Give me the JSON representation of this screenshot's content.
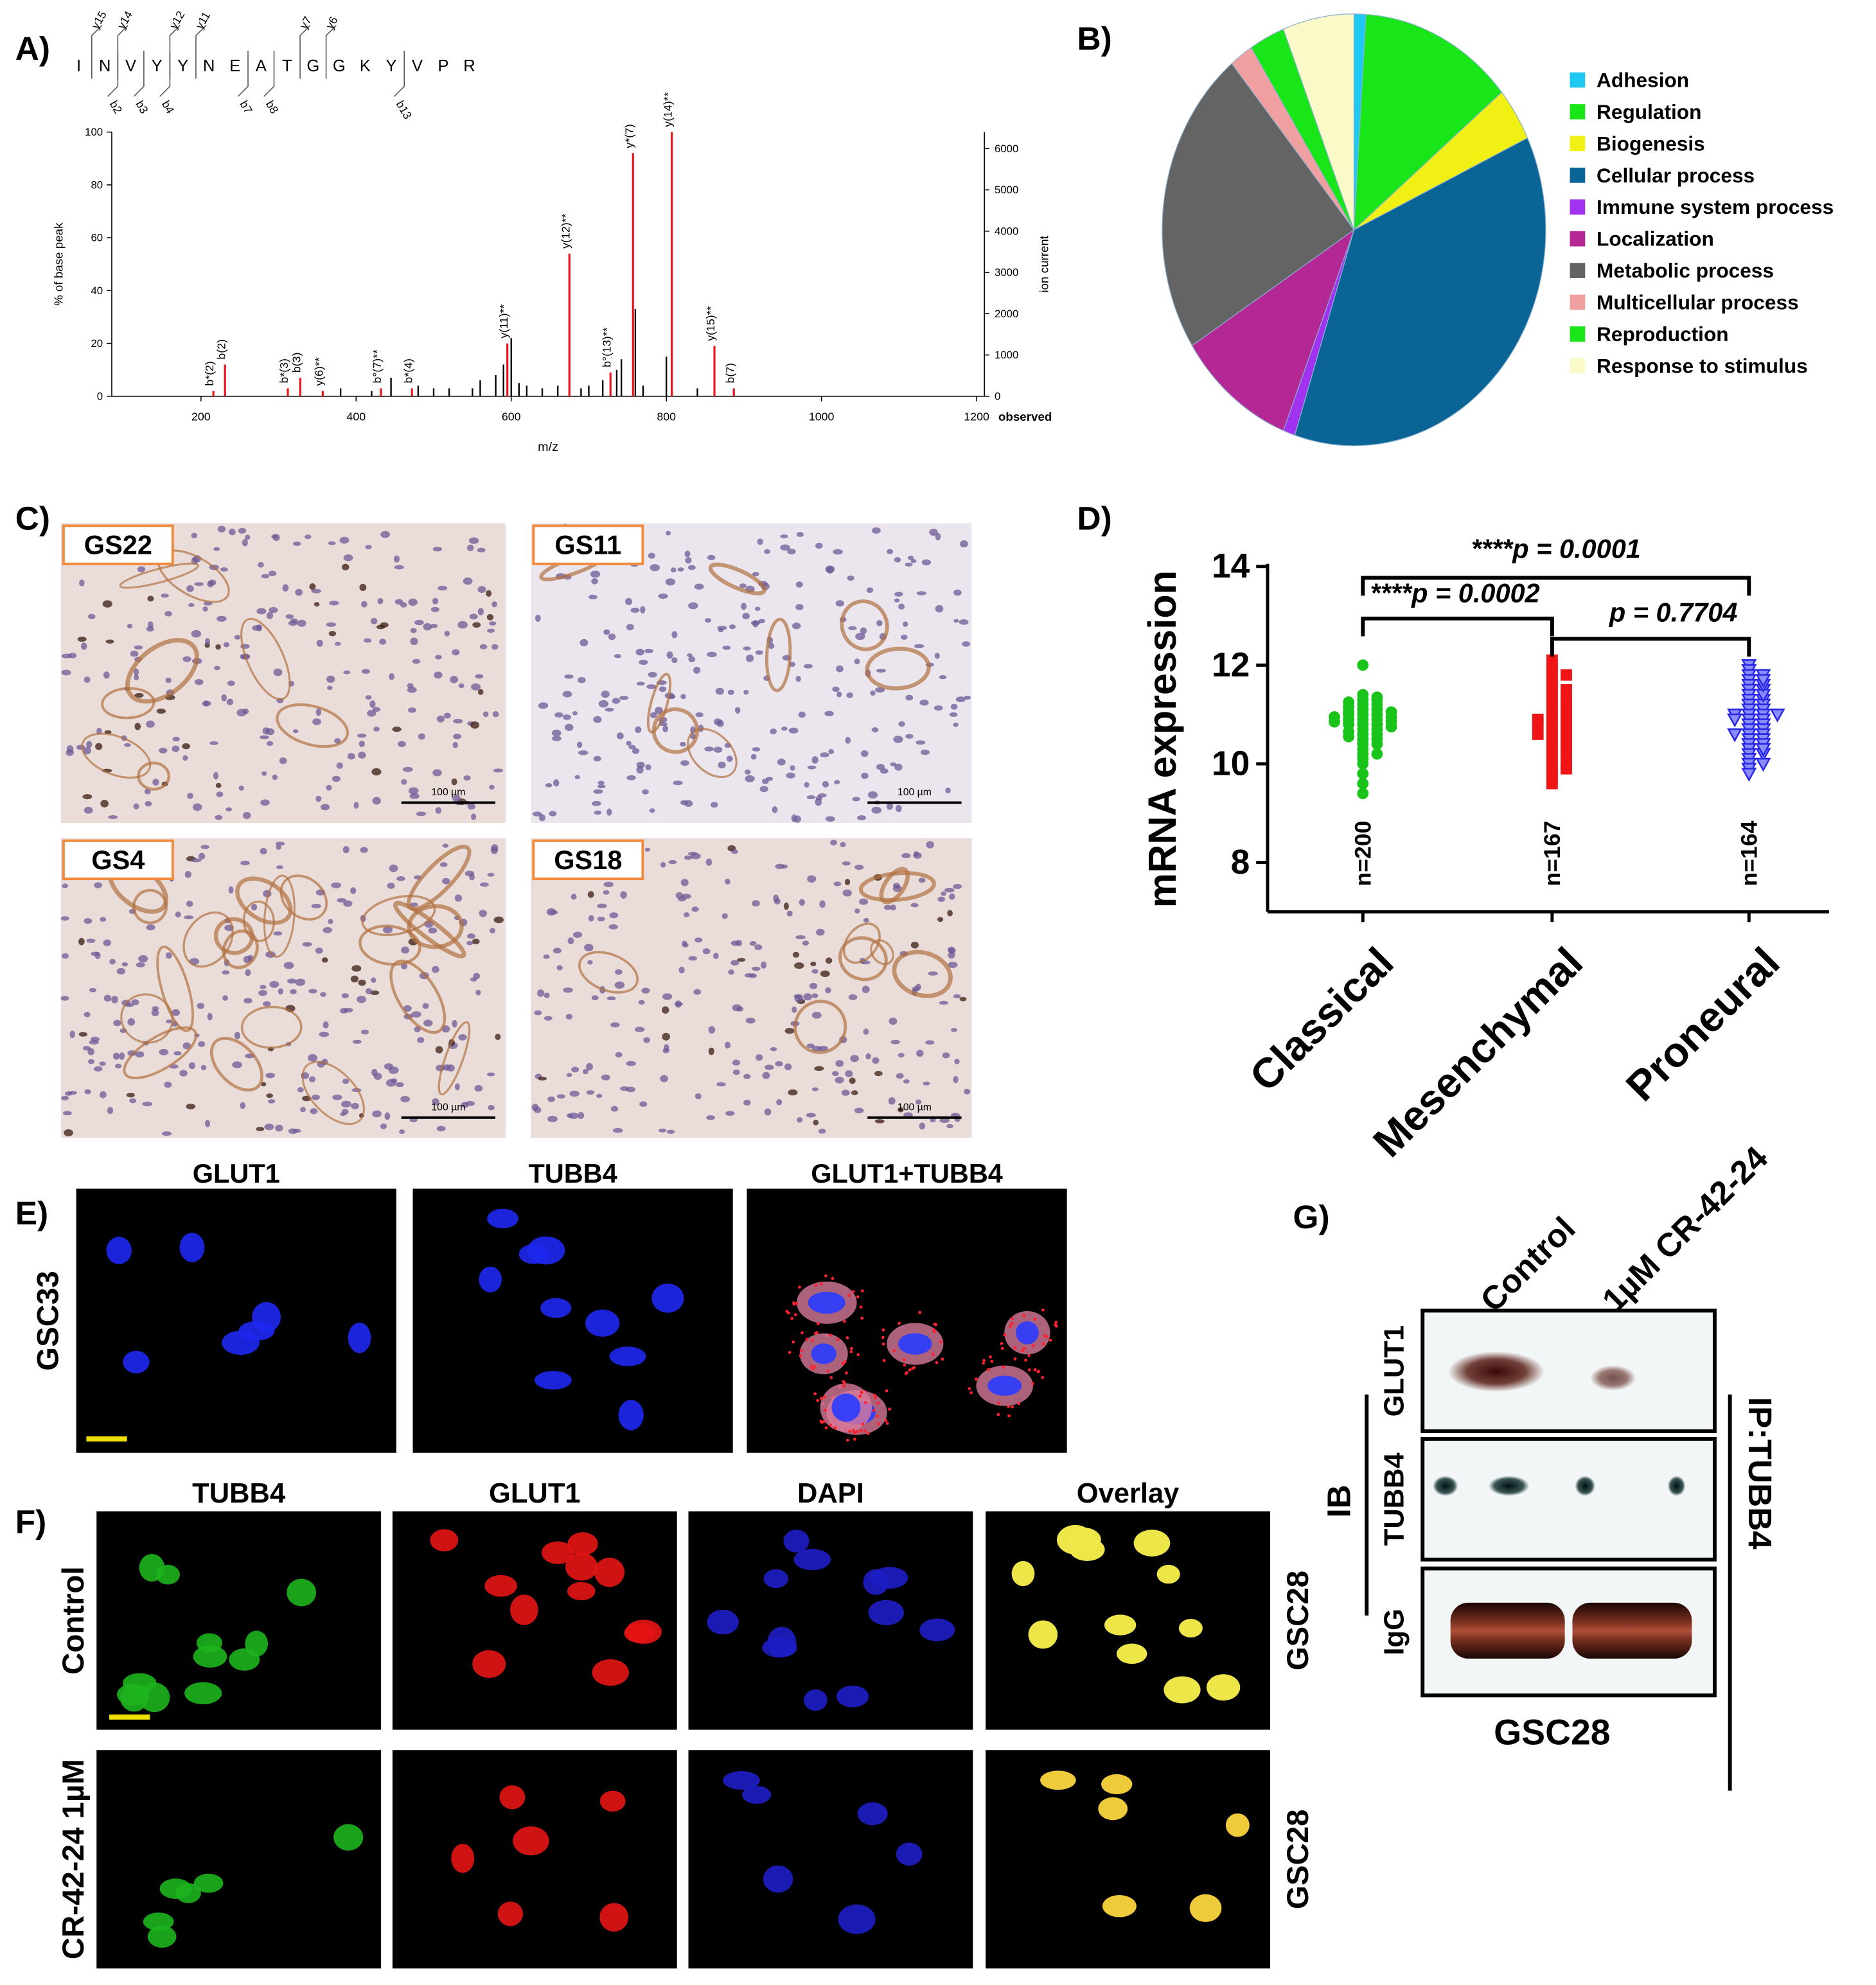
{
  "panels": {
    "A": "A)",
    "B": "B)",
    "C": "C)",
    "D": "D)",
    "E": "E)",
    "F": "F)",
    "G": "G)"
  },
  "sequence": {
    "residues": [
      "I",
      "N",
      "V",
      "Y",
      "Y",
      "N",
      "E",
      "A",
      "T",
      "G",
      "G",
      "K",
      "Y",
      "V",
      "P",
      "R"
    ],
    "y_ions": [
      "y15",
      "y14",
      "y12",
      "y11",
      "y7",
      "y6"
    ],
    "b_ions": [
      "b2",
      "b3",
      "b4",
      "b7",
      "b8",
      "b13"
    ]
  },
  "chart_data": [
    {
      "type": "spectrum",
      "xlabel": "m/z",
      "ylabel": "% of base peak",
      "y2label": "ion current",
      "x_note": "observed",
      "xlim": [
        85,
        1210
      ],
      "xticks": [
        200,
        400,
        600,
        800,
        1000,
        1200
      ],
      "ylim": [
        0,
        100
      ],
      "yticks": [
        0,
        20,
        40,
        60,
        80,
        100
      ],
      "y2lim": [
        0,
        6400
      ],
      "y2ticks": [
        0,
        1000,
        2000,
        3000,
        4000,
        5000,
        6000
      ],
      "x": [
        216,
        231,
        312,
        328,
        357,
        432,
        472,
        595,
        675,
        728,
        757,
        807,
        862,
        887,
        380,
        420,
        445,
        480,
        500,
        520,
        550,
        560,
        580,
        590,
        600,
        610,
        620,
        640,
        660,
        690,
        700,
        718,
        736,
        742,
        760,
        770,
        800,
        840
      ],
      "values": [
        2,
        12,
        3,
        7,
        2,
        3,
        3,
        20,
        54,
        9,
        92,
        100,
        19,
        3,
        3,
        2,
        7,
        4,
        3,
        3,
        3,
        6,
        8,
        12,
        22,
        5,
        4,
        3,
        4,
        3,
        4,
        6,
        10,
        14,
        33,
        4,
        15,
        3
      ],
      "colors": [
        "#e8141c",
        "#e8141c",
        "#e8141c",
        "#e8141c",
        "#e8141c",
        "#e8141c",
        "#e8141c",
        "#e8141c",
        "#e8141c",
        "#e8141c",
        "#e8141c",
        "#e8141c",
        "#e8141c",
        "#e8141c",
        "#000",
        "#000",
        "#000",
        "#000",
        "#000",
        "#000",
        "#000",
        "#000",
        "#000",
        "#000",
        "#000",
        "#000",
        "#000",
        "#000",
        "#000",
        "#000",
        "#000",
        "#000",
        "#000",
        "#000",
        "#000",
        "#000",
        "#000",
        "#000"
      ],
      "peak_labels": [
        "b*(2)",
        "b(2)",
        "b*(3)",
        "b(3)",
        "y(6)**",
        "b°(7)**",
        "b*(4)",
        "y(11)**",
        "y(12)**",
        "b°(13)**",
        "y*(7)",
        "y(14)**",
        "y(15)**",
        "b(7)",
        null,
        null,
        null,
        null,
        null,
        null,
        null,
        null,
        null,
        null,
        null,
        null,
        null,
        null,
        null,
        null,
        null,
        null,
        null,
        null,
        null,
        null,
        null,
        null
      ]
    },
    {
      "type": "pie",
      "categories": [
        "Adhesion",
        "Regulation",
        "Biogenesis",
        "Cellular process",
        "Immune system process",
        "Localization",
        "Metabolic process",
        "Multicellular process",
        "Reproduction",
        "Response to stimulus"
      ],
      "values": [
        1,
        13,
        4,
        37,
        1,
        10,
        23,
        2,
        3,
        6
      ],
      "colors": [
        "#1ec8f0",
        "#19e619",
        "#f0f014",
        "#0a6496",
        "#a032f0",
        "#b42896",
        "#646464",
        "#f0a0a0",
        "#19e619",
        "#fafac8"
      ],
      "legend": "right"
    },
    {
      "type": "dotplot",
      "ylabel": "mRNA expression",
      "ylim": [
        7,
        14
      ],
      "yticks": [
        8,
        10,
        12,
        14
      ],
      "categories": [
        "Classical",
        "Mesenchymal",
        "Proneural"
      ],
      "n_labels": [
        "n=200",
        "n=167",
        "n=164"
      ],
      "colors": [
        "#19c319",
        "#f01414",
        "#2828e6"
      ],
      "markers": [
        "circle",
        "square",
        "triangle-down"
      ],
      "values": [
        [
          12.0,
          11.4,
          11.35,
          11.3,
          11.3,
          11.2,
          11.2,
          11.15,
          11.1,
          11.1,
          11.05,
          11.0,
          11.0,
          11.0,
          10.95,
          10.9,
          10.9,
          10.9,
          10.85,
          10.8,
          10.8,
          10.8,
          10.75,
          10.7,
          10.7,
          10.65,
          10.6,
          10.6,
          10.55,
          10.5,
          10.5,
          10.4,
          10.4,
          10.3,
          10.2,
          10.2,
          10.1,
          10.0,
          9.8,
          9.6,
          9.4,
          11.25,
          10.95,
          10.85,
          11.05
        ],
        [
          12.1,
          12.0,
          11.9,
          11.8,
          11.7,
          11.6,
          11.5,
          11.4,
          11.3,
          11.3,
          11.2,
          11.1,
          11.1,
          11.0,
          11.0,
          10.9,
          10.9,
          10.8,
          10.8,
          10.8,
          10.7,
          10.7,
          10.6,
          10.6,
          10.5,
          10.5,
          10.4,
          10.4,
          10.3,
          10.3,
          10.2,
          10.1,
          10.0,
          9.9,
          9.8,
          9.7,
          9.6,
          11.5,
          10.6,
          10.9,
          11.2,
          10.2,
          10.0,
          11.8,
          9.9
        ],
        [
          12.0,
          11.9,
          11.8,
          11.7,
          11.6,
          11.5,
          11.5,
          11.4,
          11.3,
          11.3,
          11.2,
          11.2,
          11.1,
          11.1,
          11.0,
          11.0,
          11.0,
          10.9,
          10.9,
          10.8,
          10.8,
          10.7,
          10.7,
          10.6,
          10.6,
          10.5,
          10.5,
          10.4,
          10.3,
          10.2,
          10.1,
          10.0,
          9.9,
          9.8,
          11.4,
          11.6,
          10.6,
          10.4,
          10.2,
          11.8,
          11.0,
          10.9,
          10.3,
          10.0,
          11.7
        ]
      ],
      "comparisons": [
        {
          "pair": [
            0,
            2
          ],
          "label": "****p = 0.0001"
        },
        {
          "pair": [
            0,
            1
          ],
          "label": "****p = 0.0002"
        },
        {
          "pair": [
            1,
            2
          ],
          "label": "p = 0.7704"
        }
      ]
    }
  ],
  "histology": {
    "labels": [
      "GS22",
      "GS11",
      "GS4",
      "GS18"
    ],
    "scale": "100 µm"
  },
  "if_e": {
    "columns": [
      "GLUT1",
      "TUBB4",
      "GLUT1+TUBB4"
    ],
    "row": "GSC33"
  },
  "if_f": {
    "columns": [
      "TUBB4",
      "GLUT1",
      "DAPI",
      "Overlay"
    ],
    "rows": [
      "Control",
      "CR-42-24 1µM"
    ],
    "cell_line": [
      "GSC28",
      "GSC28"
    ]
  },
  "blot": {
    "lanes": [
      "Control",
      "1µM CR-42-24"
    ],
    "rows": [
      "GLUT1",
      "TUBB4",
      "IgG"
    ],
    "ib": "IB",
    "ip": "IP:TUBB4",
    "cell_line": "GSC28"
  }
}
